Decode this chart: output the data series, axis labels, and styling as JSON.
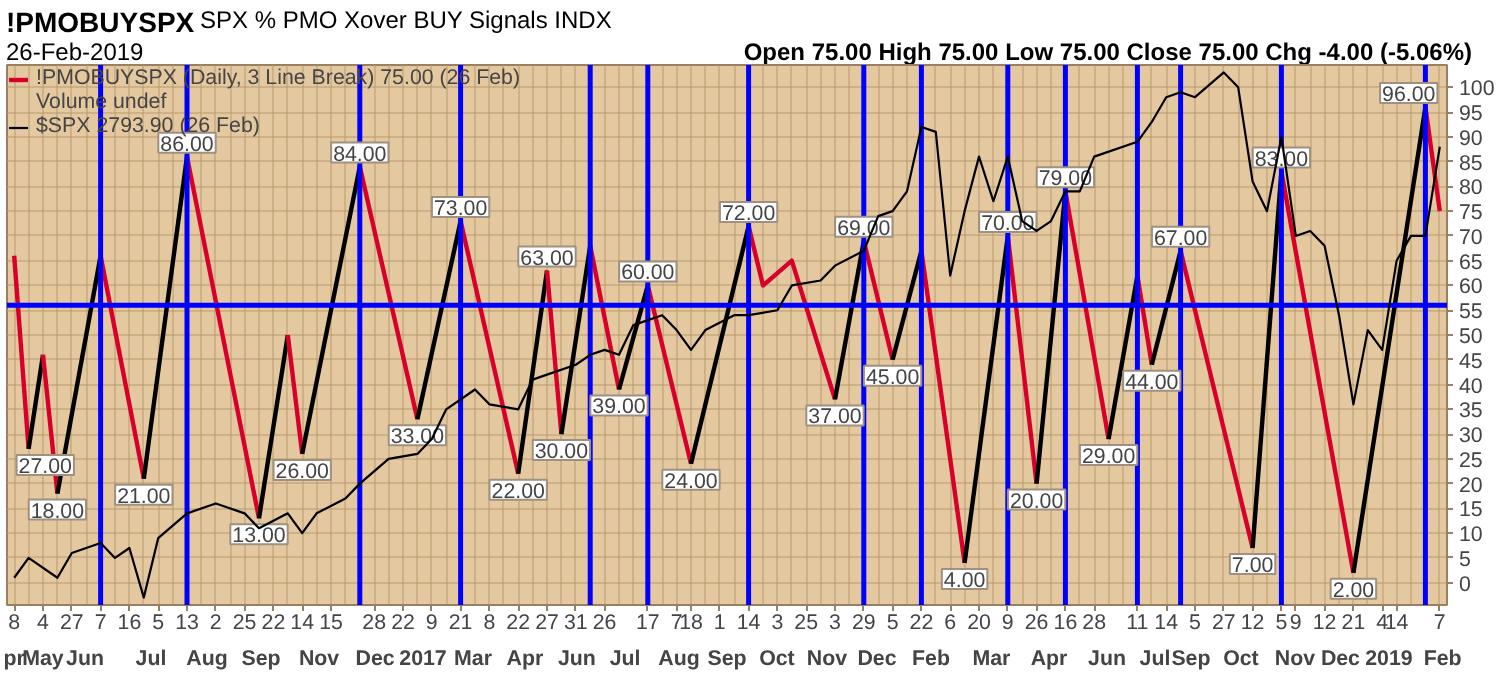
{
  "chart_data": {
    "type": "line",
    "title": "!PMOBUYSPX",
    "subtitle": "SPX % PMO Xover BUY Signals INDX",
    "categories": [
      "8",
      null,
      "4",
      null,
      "27",
      null,
      "7",
      null,
      "16",
      null,
      "5",
      null,
      "13",
      null,
      "2",
      null,
      "25",
      null,
      "22",
      null,
      "14",
      null,
      "15",
      null,
      null,
      "28",
      null,
      "22",
      null,
      "9",
      null,
      "21",
      null,
      "8",
      null,
      "22",
      null,
      "27",
      null,
      "31",
      null,
      "26",
      null,
      null,
      "17",
      null,
      "7",
      "18",
      null,
      "1",
      null,
      "14",
      null,
      "3",
      null,
      "25",
      null,
      "3",
      null,
      "29",
      null,
      "5",
      null,
      "22",
      null,
      "6",
      null,
      "20",
      null,
      "9",
      null,
      "26",
      null,
      "16",
      null,
      "28",
      null,
      null,
      "11",
      null,
      "14",
      null,
      "5",
      null,
      "27",
      null,
      "12",
      null,
      "5",
      "9",
      null,
      "12",
      null,
      "21",
      null,
      "4",
      "14",
      null,
      null,
      "7"
    ],
    "ylim": [
      -4.5,
      104.5
    ],
    "yticks": [
      0,
      5,
      10,
      15,
      20,
      25,
      30,
      35,
      40,
      45,
      50,
      55,
      60,
      65,
      70,
      75,
      80,
      85,
      90,
      95,
      100
    ],
    "grid": true,
    "legend": "top left",
    "series": [
      {
        "name": "!PMOBUYSPX (Daily, 3 Line Break) 75.00 (26 Feb)",
        "color": "#d8002a",
        "values": [
          66,
          27,
          46,
          18,
          null,
          null,
          66,
          null,
          null,
          21,
          null,
          null,
          86,
          null,
          null,
          null,
          null,
          13,
          null,
          50,
          26,
          null,
          null,
          null,
          84,
          null,
          null,
          null,
          33,
          null,
          null,
          73,
          null,
          null,
          null,
          22,
          null,
          63,
          30,
          null,
          68,
          null,
          39,
          null,
          60,
          null,
          null,
          24,
          null,
          null,
          null,
          72,
          60,
          null,
          65,
          null,
          null,
          37,
          null,
          69,
          null,
          45,
          null,
          67,
          null,
          null,
          4,
          null,
          null,
          70,
          null,
          20,
          null,
          79,
          null,
          null,
          29,
          null,
          62,
          44,
          null,
          67,
          null,
          null,
          null,
          null,
          7,
          null,
          83,
          null,
          null,
          null,
          null,
          2,
          null,
          null,
          null,
          null,
          96,
          75
        ],
        "colors": [
          "#d8002a",
          "#d8002a",
          "#000000",
          "#d8002a",
          null,
          null,
          "#000000",
          null,
          null,
          "#d8002a",
          null,
          null,
          "#000000",
          null,
          null,
          null,
          null,
          "#d8002a",
          null,
          "#000000",
          "#d8002a",
          null,
          null,
          null,
          "#000000",
          null,
          null,
          null,
          "#d8002a",
          null,
          null,
          "#000000",
          null,
          null,
          null,
          "#d8002a",
          null,
          "#000000",
          "#d8002a",
          null,
          "#000000",
          null,
          "#d8002a",
          null,
          "#000000",
          null,
          null,
          "#d8002a",
          null,
          null,
          null,
          "#000000",
          "#d8002a",
          null,
          "#d8002a",
          null,
          null,
          "#d8002a",
          null,
          "#000000",
          null,
          "#d8002a",
          null,
          "#000000",
          null,
          null,
          "#d8002a",
          null,
          null,
          "#000000",
          null,
          "#d8002a",
          null,
          "#000000",
          null,
          null,
          "#d8002a",
          null,
          "#000000",
          "#d8002a",
          null,
          "#000000",
          null,
          null,
          null,
          null,
          "#d8002a",
          null,
          "#000000",
          null,
          null,
          null,
          null,
          "#d8002a",
          null,
          null,
          null,
          null,
          "#000000",
          "#d8002a"
        ],
        "value_labels": [
          null,
          "27.00",
          null,
          "18.00",
          null,
          null,
          null,
          null,
          null,
          "21.00",
          null,
          null,
          "86.00",
          null,
          null,
          null,
          null,
          "13.00",
          null,
          null,
          "26.00",
          null,
          null,
          null,
          "84.00",
          null,
          null,
          null,
          "33.00",
          null,
          null,
          "73.00",
          null,
          null,
          null,
          "22.00",
          null,
          "63.00",
          "30.00",
          null,
          null,
          null,
          "39.00",
          null,
          "60.00",
          null,
          null,
          "24.00",
          null,
          null,
          null,
          "72.00",
          null,
          null,
          null,
          null,
          null,
          "37.00",
          null,
          "69.00",
          null,
          "45.00",
          null,
          null,
          null,
          null,
          "4.00",
          null,
          null,
          "70.00",
          null,
          "20.00",
          null,
          "79.00",
          null,
          null,
          "29.00",
          null,
          null,
          "44.00",
          null,
          "67.00",
          null,
          null,
          null,
          null,
          "7.00",
          null,
          "83.00",
          null,
          null,
          null,
          null,
          "2.00",
          null,
          null,
          null,
          null,
          "96.00",
          null
        ]
      },
      {
        "name": "$SPX 2793.90 (26 Feb)",
        "color": "#000000",
        "values": [
          1,
          5,
          null,
          1,
          6,
          7,
          8,
          5,
          7,
          -3,
          9,
          null,
          14,
          null,
          16,
          null,
          14,
          11,
          null,
          14,
          10,
          14,
          null,
          17,
          20,
          null,
          25,
          null,
          26,
          29,
          35,
          null,
          39,
          36,
          null,
          35,
          41,
          42,
          null,
          44,
          46,
          47,
          46,
          52,
          null,
          54,
          51,
          47,
          51,
          null,
          54,
          54,
          null,
          55,
          60,
          null,
          61,
          64,
          null,
          67,
          74,
          75,
          79,
          92,
          91,
          62,
          75,
          86,
          77,
          86,
          73,
          71,
          73,
          79,
          79,
          86,
          null,
          null,
          89,
          93,
          98,
          99,
          98,
          null,
          103,
          100,
          81,
          75,
          90,
          70,
          71,
          68,
          54,
          36,
          51,
          47,
          65,
          70,
          70,
          88
        ]
      }
    ],
    "ref_lines": [
      {
        "axis": "y",
        "value": 56,
        "color": "#0000ff"
      }
    ],
    "annotations": [
      "26-Feb-2019",
      "Open 75.00 High 75.00 Low 75.00 Close 75.00 Chg -4.00 (-5.06%)",
      "Volume undef",
      "pr",
      "May",
      "Jun",
      "Jul",
      "Aug",
      "Sep",
      "Nov",
      "Dec",
      "2017",
      "Mar",
      "Apr",
      "Jun",
      "Jul",
      "Aug",
      "Sep",
      "Oct",
      "Nov",
      "Dec",
      "Feb",
      "Mar",
      "Apr",
      "Jun",
      "Jul",
      "Sep",
      "Oct",
      "Nov",
      "Dec",
      "2019",
      "Feb"
    ]
  }
}
